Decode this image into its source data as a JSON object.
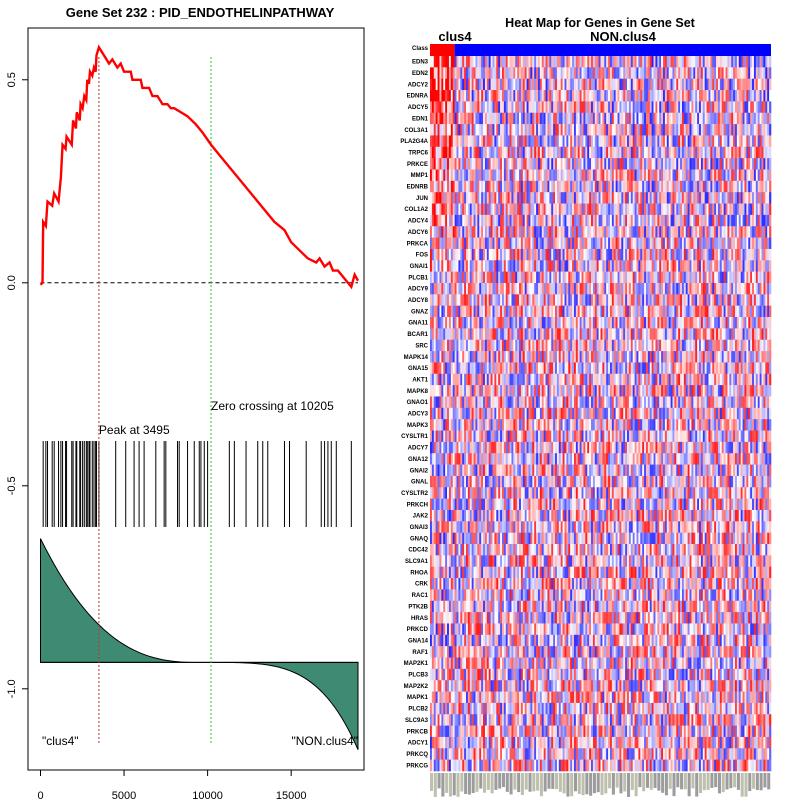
{
  "chart_data": [
    {
      "type": "line",
      "title": "Gene Set  232 : PID_ENDOTHELINPATHWAY",
      "xlim": [
        0,
        19000
      ],
      "ylim": [
        -1.2,
        0.63
      ],
      "x_ticks": [
        0,
        5000,
        10000,
        15000
      ],
      "x_tick_labels": [
        "0",
        "5000",
        "10000",
        "15000"
      ],
      "y_ticks": [
        0.5,
        0.0,
        -0.5,
        -1.0
      ],
      "y_tick_labels": [
        "0.5",
        "0.0",
        "-0.5",
        "-1.0"
      ],
      "es_curve": [
        [
          0,
          -0.005
        ],
        [
          120,
          0.0
        ],
        [
          160,
          0.15
        ],
        [
          320,
          0.14
        ],
        [
          420,
          0.2
        ],
        [
          700,
          0.19
        ],
        [
          820,
          0.22
        ],
        [
          1080,
          0.2
        ],
        [
          1220,
          0.26
        ],
        [
          1320,
          0.34
        ],
        [
          1500,
          0.33
        ],
        [
          1560,
          0.36
        ],
        [
          1870,
          0.34
        ],
        [
          1950,
          0.4
        ],
        [
          2120,
          0.38
        ],
        [
          2170,
          0.42
        ],
        [
          2350,
          0.4
        ],
        [
          2400,
          0.44
        ],
        [
          2520,
          0.43
        ],
        [
          2620,
          0.46
        ],
        [
          2740,
          0.45
        ],
        [
          2800,
          0.5
        ],
        [
          2900,
          0.49
        ],
        [
          2960,
          0.52
        ],
        [
          3100,
          0.51
        ],
        [
          3200,
          0.53
        ],
        [
          3300,
          0.52
        ],
        [
          3350,
          0.56
        ],
        [
          3495,
          0.58
        ],
        [
          3800,
          0.56
        ],
        [
          4100,
          0.54
        ],
        [
          4300,
          0.55
        ],
        [
          4600,
          0.53
        ],
        [
          4800,
          0.54
        ],
        [
          5000,
          0.52
        ],
        [
          5400,
          0.52
        ],
        [
          5500,
          0.5
        ],
        [
          6000,
          0.5
        ],
        [
          6100,
          0.48
        ],
        [
          6500,
          0.48
        ],
        [
          6700,
          0.46
        ],
        [
          7000,
          0.46
        ],
        [
          7300,
          0.44
        ],
        [
          7600,
          0.44
        ],
        [
          7800,
          0.43
        ],
        [
          8000,
          0.43
        ],
        [
          8400,
          0.42
        ],
        [
          8800,
          0.41
        ],
        [
          9300,
          0.39
        ],
        [
          9700,
          0.37
        ],
        [
          10205,
          0.34
        ],
        [
          11000,
          0.3
        ],
        [
          12000,
          0.25
        ],
        [
          13000,
          0.2
        ],
        [
          14000,
          0.15
        ],
        [
          14600,
          0.13
        ],
        [
          15000,
          0.1
        ],
        [
          15500,
          0.08
        ],
        [
          16000,
          0.06
        ],
        [
          16500,
          0.05
        ],
        [
          16700,
          0.06
        ],
        [
          17000,
          0.04
        ],
        [
          17300,
          0.05
        ],
        [
          17500,
          0.03
        ],
        [
          17800,
          0.03
        ],
        [
          18200,
          0.01
        ],
        [
          18600,
          -0.01
        ],
        [
          18800,
          0.02
        ],
        [
          19000,
          0.005
        ]
      ],
      "hit_positions": [
        160,
        320,
        420,
        700,
        820,
        1080,
        1220,
        1320,
        1500,
        1560,
        1870,
        1950,
        2120,
        2170,
        2350,
        2400,
        2520,
        2620,
        2740,
        2800,
        2900,
        2960,
        3100,
        3200,
        3300,
        3350,
        3495,
        4500,
        5100,
        5600,
        5900,
        6200,
        6900,
        7400,
        7500,
        8200,
        8300,
        8800,
        9200,
        9500,
        9600,
        9800,
        10000,
        11300,
        11600,
        12300,
        13000,
        13300,
        13600,
        14600,
        14900,
        15900,
        16800,
        17000,
        17200,
        17400,
        17700,
        18600
      ],
      "ranked_metric": {
        "min": -1.15,
        "max": -0.63,
        "baseline": -0.935
      },
      "peak": {
        "x": 3495,
        "label": "Peak at 3495"
      },
      "zero_crossing": {
        "x": 10205,
        "label": "Zero crossing at 10205"
      },
      "left_label": "\"clus4\"",
      "right_label": "\"NON.clus4\"",
      "colors": {
        "curve": "#ff0000",
        "peak_line": "#c0303a",
        "zero_line": "#2fbf2f",
        "fill": "#3f8a72"
      }
    },
    {
      "type": "heatmap",
      "title": "Heat Map for Genes in Gene Set",
      "class_label": "Class",
      "classes": [
        {
          "name": "clus4",
          "color": "#ff0000"
        },
        {
          "name": "NON.clus4",
          "color": "#0000ff"
        }
      ],
      "genes": [
        "EDN3",
        "EDN2",
        "ADCY2",
        "EDNRA",
        "ADCY5",
        "EDN1",
        "COL3A1",
        "PLA2G4A",
        "TRPC6",
        "PRKCE",
        "MMP1",
        "EDNRB",
        "JUN",
        "COL1A2",
        "ADCY4",
        "ADCY6",
        "PRKCA",
        "FOS",
        "GNAI1",
        "PLCB1",
        "ADCY9",
        "ADCY8",
        "GNAZ",
        "GNA11",
        "BCAR1",
        "SRC",
        "MAPK14",
        "GNA15",
        "AKT1",
        "MAPK8",
        "GNAO1",
        "ADCY3",
        "MAPK3",
        "CYSLTR1",
        "ADCY7",
        "GNA12",
        "GNAI2",
        "GNAL",
        "CYSLTR2",
        "PRKCH",
        "JAK2",
        "GNAI3",
        "GNAQ",
        "CDC42",
        "SLC9A1",
        "RHOA",
        "CRK",
        "RAC1",
        "PTK2B",
        "HRAS",
        "PRKCD",
        "GNA14",
        "RAF1",
        "MAP2K1",
        "PLCB3",
        "MAP2K2",
        "MAPK1",
        "PLCB2",
        "SLC9A3",
        "PRKCB",
        "ADCY1",
        "PRKCQ",
        "PRKCG"
      ],
      "n_class1_samples": 13,
      "n_samples": 180,
      "colors": {
        "high": "#ff0000",
        "mid": "#ffffff",
        "low": "#0000ff"
      }
    }
  ]
}
